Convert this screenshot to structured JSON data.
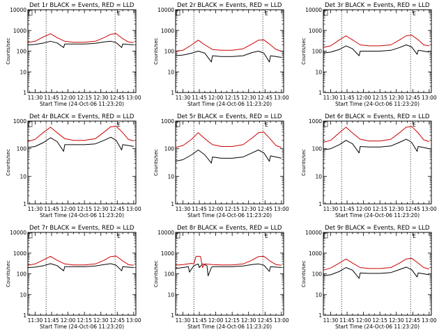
{
  "chart_data": [
    {
      "type": "line",
      "title": "Det 1r BLACK = Events, RED = LLD",
      "xlabel": "Start Time (24-Oct-06 11:23:20)",
      "ylabel": "Counts/sec",
      "x_ticks": [
        "11:30",
        "11:45",
        "12:00",
        "12:15",
        "12:30",
        "12:45",
        "13:00"
      ],
      "y_ticks": [
        "1",
        "10",
        "100",
        "1000",
        "10000"
      ],
      "ylim": [
        1,
        10000
      ],
      "y_scale": "log",
      "markers": [
        "11:40",
        "12:43"
      ],
      "flag": "E",
      "series": [
        {
          "color": "#000000",
          "x": [
            "11:23",
            "11:30",
            "11:38",
            "11:44",
            "11:50",
            "11:56",
            "11:57",
            "12:05",
            "12:15",
            "12:25",
            "12:33",
            "12:39",
            "12:44",
            "12:49",
            "12:50",
            "12:55",
            "13:00"
          ],
          "values": [
            200,
            210,
            250,
            300,
            250,
            150,
            220,
            220,
            220,
            240,
            280,
            300,
            260,
            150,
            220,
            210,
            200
          ]
        },
        {
          "color": "#cc0000",
          "x": [
            "11:23",
            "11:30",
            "11:38",
            "11:44",
            "11:50",
            "11:57",
            "12:05",
            "12:15",
            "12:25",
            "12:33",
            "12:39",
            "12:44",
            "12:50",
            "12:55",
            "13:00"
          ],
          "values": [
            260,
            300,
            500,
            700,
            450,
            300,
            270,
            270,
            300,
            450,
            650,
            700,
            400,
            280,
            260
          ]
        }
      ]
    },
    {
      "type": "line",
      "title": "Det 2r BLACK = Events, RED = LLD",
      "xlabel": "Start Time (24-Oct-06 11:23:20)",
      "ylabel": "Counts/sec",
      "x_ticks": [
        "11:30",
        "11:45",
        "12:00",
        "12:15",
        "12:30",
        "12:45",
        "13:00"
      ],
      "y_ticks": [
        "1",
        "10",
        "100",
        "1000",
        "10000"
      ],
      "ylim": [
        1,
        10000
      ],
      "y_scale": "log",
      "markers": [
        "11:40",
        "12:43"
      ],
      "flag": "E",
      "series": [
        {
          "color": "#000000",
          "x": [
            "11:23",
            "11:30",
            "11:38",
            "11:44",
            "11:50",
            "11:56",
            "11:57",
            "12:05",
            "12:15",
            "12:25",
            "12:33",
            "12:39",
            "12:44",
            "12:49",
            "12:50",
            "12:55",
            "13:00"
          ],
          "values": [
            60,
            65,
            80,
            100,
            80,
            30,
            60,
            55,
            55,
            60,
            85,
            100,
            80,
            30,
            60,
            55,
            50
          ]
        },
        {
          "color": "#cc0000",
          "x": [
            "11:23",
            "11:30",
            "11:38",
            "11:44",
            "11:50",
            "11:57",
            "12:05",
            "12:15",
            "12:25",
            "12:33",
            "12:39",
            "12:44",
            "12:50",
            "12:55",
            "13:00"
          ],
          "values": [
            100,
            110,
            200,
            340,
            200,
            120,
            110,
            110,
            130,
            220,
            340,
            350,
            200,
            120,
            100
          ]
        }
      ]
    },
    {
      "type": "line",
      "title": "Det 3r BLACK = Events, RED = LLD",
      "xlabel": "Start Time (24-Oct-06 11:23:20)",
      "ylabel": "Counts/sec",
      "x_ticks": [
        "11:30",
        "11:45",
        "12:00",
        "12:15",
        "12:30",
        "12:45",
        "13:00"
      ],
      "y_ticks": [
        "1",
        "10",
        "100",
        "1000",
        "10000"
      ],
      "ylim": [
        1,
        10000
      ],
      "y_scale": "log",
      "markers": [
        "11:40",
        "12:43"
      ],
      "flag": "E",
      "series": [
        {
          "color": "#000000",
          "x": [
            "11:23",
            "11:30",
            "11:38",
            "11:44",
            "11:50",
            "11:56",
            "11:57",
            "12:05",
            "12:15",
            "12:25",
            "12:33",
            "12:39",
            "12:44",
            "12:49",
            "12:50",
            "12:55",
            "13:00"
          ],
          "values": [
            80,
            90,
            120,
            180,
            130,
            60,
            100,
            100,
            100,
            110,
            150,
            200,
            160,
            70,
            110,
            100,
            90
          ]
        },
        {
          "color": "#cc0000",
          "x": [
            "11:23",
            "11:30",
            "11:38",
            "11:44",
            "11:50",
            "11:57",
            "12:05",
            "12:15",
            "12:25",
            "12:33",
            "12:39",
            "12:44",
            "12:50",
            "12:55",
            "13:00"
          ],
          "values": [
            150,
            180,
            350,
            550,
            350,
            200,
            180,
            180,
            200,
            350,
            550,
            600,
            350,
            200,
            180
          ]
        }
      ]
    },
    {
      "type": "line",
      "title": "Det 4r BLACK = Events, RED = LLD",
      "xlabel": "Start Time (24-Oct-06 11:23:20)",
      "ylabel": "Counts/sec",
      "x_ticks": [
        "11:30",
        "11:45",
        "12:00",
        "12:15",
        "12:30",
        "12:45",
        "13:00"
      ],
      "y_ticks": [
        "1",
        "10",
        "100",
        "1000"
      ],
      "ylim": [
        1,
        1000
      ],
      "y_scale": "log",
      "markers": [
        "11:40",
        "12:43"
      ],
      "flag": "E",
      "series": [
        {
          "color": "#000000",
          "x": [
            "11:23",
            "11:30",
            "11:38",
            "11:44",
            "11:50",
            "11:56",
            "11:57",
            "12:05",
            "12:15",
            "12:25",
            "12:33",
            "12:39",
            "12:44",
            "12:49",
            "12:50",
            "12:55",
            "13:00"
          ],
          "values": [
            110,
            120,
            170,
            250,
            180,
            80,
            140,
            140,
            140,
            150,
            200,
            260,
            200,
            90,
            140,
            130,
            120
          ]
        },
        {
          "color": "#cc0000",
          "x": [
            "11:23",
            "11:30",
            "11:38",
            "11:44",
            "11:50",
            "11:57",
            "12:05",
            "12:15",
            "12:25",
            "12:33",
            "12:39",
            "12:44",
            "12:50",
            "12:55",
            "13:00"
          ],
          "values": [
            180,
            220,
            400,
            600,
            380,
            230,
            200,
            200,
            230,
            400,
            620,
            650,
            380,
            220,
            190
          ]
        }
      ]
    },
    {
      "type": "line",
      "title": "Det 5r BLACK = Events, RED = LLD",
      "xlabel": "Start Time (24-Oct-06 11:23:20)",
      "ylabel": "Counts/sec",
      "x_ticks": [
        "11:30",
        "11:45",
        "12:00",
        "12:15",
        "12:30",
        "12:45",
        "13:00"
      ],
      "y_ticks": [
        "1",
        "10",
        "100",
        "1000"
      ],
      "ylim": [
        1,
        1000
      ],
      "y_scale": "log",
      "markers": [
        "11:40",
        "12:43"
      ],
      "flag": "E",
      "series": [
        {
          "color": "#000000",
          "x": [
            "11:23",
            "11:30",
            "11:38",
            "11:44",
            "11:50",
            "11:56",
            "11:57",
            "12:05",
            "12:15",
            "12:25",
            "12:33",
            "12:39",
            "12:44",
            "12:49",
            "12:50",
            "12:55",
            "13:00"
          ],
          "values": [
            35,
            40,
            60,
            90,
            60,
            30,
            50,
            45,
            45,
            50,
            70,
            90,
            70,
            35,
            55,
            50,
            45
          ]
        },
        {
          "color": "#cc0000",
          "x": [
            "11:23",
            "11:30",
            "11:38",
            "11:44",
            "11:50",
            "11:57",
            "12:05",
            "12:15",
            "12:25",
            "12:33",
            "12:39",
            "12:44",
            "12:50",
            "12:55",
            "13:00"
          ],
          "values": [
            110,
            130,
            220,
            380,
            230,
            140,
            120,
            120,
            140,
            240,
            380,
            400,
            220,
            130,
            110
          ]
        }
      ]
    },
    {
      "type": "line",
      "title": "Det 6r BLACK = Events, RED = LLD",
      "xlabel": "Start Time (24-Oct-06 11:23:20)",
      "ylabel": "Counts/sec",
      "x_ticks": [
        "11:30",
        "11:45",
        "12:00",
        "12:15",
        "12:30",
        "12:45",
        "13:00"
      ],
      "y_ticks": [
        "1",
        "10",
        "100",
        "1000"
      ],
      "ylim": [
        1,
        1000
      ],
      "y_scale": "log",
      "markers": [
        "11:40",
        "12:43"
      ],
      "flag": "E",
      "series": [
        {
          "color": "#000000",
          "x": [
            "11:23",
            "11:30",
            "11:38",
            "11:44",
            "11:50",
            "11:56",
            "11:57",
            "12:05",
            "12:15",
            "12:25",
            "12:33",
            "12:39",
            "12:44",
            "12:49",
            "12:50",
            "12:55",
            "13:00"
          ],
          "values": [
            90,
            100,
            140,
            200,
            150,
            70,
            120,
            115,
            115,
            125,
            170,
            220,
            170,
            80,
            120,
            110,
            100
          ]
        },
        {
          "color": "#cc0000",
          "x": [
            "11:23",
            "11:30",
            "11:38",
            "11:44",
            "11:50",
            "11:57",
            "12:05",
            "12:15",
            "12:25",
            "12:33",
            "12:39",
            "12:44",
            "12:50",
            "12:55",
            "13:00"
          ],
          "values": [
            170,
            200,
            380,
            600,
            370,
            220,
            190,
            190,
            220,
            380,
            600,
            640,
            370,
            210,
            180
          ]
        }
      ]
    },
    {
      "type": "line",
      "title": "Det 7r BLACK = Events, RED = LLD",
      "xlabel": "Start Time (24-Oct-06 11:23:20)",
      "ylabel": "Counts/sec",
      "x_ticks": [
        "11:30",
        "11:45",
        "12:00",
        "12:15",
        "12:30",
        "12:45",
        "13:00"
      ],
      "y_ticks": [
        "1",
        "10",
        "100",
        "1000",
        "10000"
      ],
      "ylim": [
        1,
        10000
      ],
      "y_scale": "log",
      "markers": [
        "11:40",
        "12:43"
      ],
      "flag": "E",
      "series": [
        {
          "color": "#000000",
          "x": [
            "11:23",
            "11:30",
            "11:38",
            "11:44",
            "11:50",
            "11:56",
            "11:57",
            "12:05",
            "12:15",
            "12:25",
            "12:33",
            "12:39",
            "12:44",
            "12:49",
            "12:50",
            "12:55",
            "13:00"
          ],
          "values": [
            200,
            210,
            250,
            310,
            250,
            140,
            220,
            220,
            220,
            240,
            280,
            310,
            260,
            140,
            220,
            210,
            200
          ]
        },
        {
          "color": "#cc0000",
          "x": [
            "11:23",
            "11:30",
            "11:38",
            "11:44",
            "11:50",
            "11:57",
            "12:05",
            "12:15",
            "12:25",
            "12:33",
            "12:39",
            "12:44",
            "12:50",
            "12:55",
            "13:00"
          ],
          "values": [
            260,
            300,
            480,
            700,
            450,
            300,
            270,
            270,
            300,
            450,
            680,
            720,
            420,
            280,
            260
          ]
        }
      ]
    },
    {
      "type": "line",
      "title": "Det 8r BLACK = Events, RED = LLD",
      "xlabel": "Start Time (24-Oct-06 11:23:20)",
      "ylabel": "Counts/sec",
      "x_ticks": [
        "11:30",
        "11:45",
        "12:00",
        "12:15",
        "12:30",
        "12:45",
        "13:00"
      ],
      "y_ticks": [
        "1",
        "10",
        "100",
        "1000",
        "10000"
      ],
      "ylim": [
        1,
        10000
      ],
      "y_scale": "log",
      "markers": [
        "11:40",
        "12:43"
      ],
      "flag": "E",
      "series": [
        {
          "color": "#000000",
          "x": [
            "11:23",
            "11:30",
            "11:35",
            "11:36",
            "11:40",
            "11:44",
            "11:45",
            "11:48",
            "11:52",
            "11:53",
            "11:56",
            "11:57",
            "12:05",
            "12:15",
            "12:25",
            "12:33",
            "12:39",
            "12:44",
            "12:49",
            "12:50",
            "12:55",
            "13:00"
          ],
          "values": [
            180,
            200,
            220,
            120,
            250,
            300,
            200,
            300,
            250,
            80,
            200,
            220,
            220,
            220,
            240,
            280,
            300,
            260,
            130,
            220,
            210,
            200
          ]
        },
        {
          "color": "#cc0000",
          "x": [
            "11:23",
            "11:30",
            "11:38",
            "11:40",
            "11:42",
            "11:46",
            "11:48",
            "11:50",
            "11:57",
            "12:05",
            "12:15",
            "12:25",
            "12:33",
            "12:39",
            "12:44",
            "12:50",
            "12:55",
            "13:00"
          ],
          "values": [
            260,
            280,
            320,
            300,
            700,
            700,
            200,
            300,
            280,
            270,
            270,
            300,
            450,
            680,
            700,
            400,
            280,
            260
          ]
        }
      ]
    },
    {
      "type": "line",
      "title": "Det 9r BLACK = Events, RED = LLD",
      "xlabel": "Start Time (24-Oct-06 11:23:20)",
      "ylabel": "Counts/sec",
      "x_ticks": [
        "11:30",
        "11:45",
        "12:00",
        "12:15",
        "12:30",
        "12:45",
        "13:00"
      ],
      "y_ticks": [
        "1",
        "10",
        "100",
        "1000",
        "10000"
      ],
      "ylim": [
        1,
        10000
      ],
      "y_scale": "log",
      "markers": [
        "11:40",
        "12:43"
      ],
      "flag": "E",
      "series": [
        {
          "color": "#000000",
          "x": [
            "11:23",
            "11:30",
            "11:38",
            "11:44",
            "11:50",
            "11:56",
            "11:57",
            "12:05",
            "12:15",
            "12:25",
            "12:33",
            "12:39",
            "12:44",
            "12:49",
            "12:50",
            "12:55",
            "13:00"
          ],
          "values": [
            80,
            90,
            130,
            200,
            150,
            60,
            110,
            105,
            105,
            115,
            160,
            210,
            160,
            70,
            110,
            100,
            90
          ]
        },
        {
          "color": "#cc0000",
          "x": [
            "11:23",
            "11:30",
            "11:38",
            "11:44",
            "11:50",
            "11:57",
            "12:05",
            "12:15",
            "12:25",
            "12:33",
            "12:39",
            "12:44",
            "12:50",
            "12:55",
            "13:00"
          ],
          "values": [
            150,
            190,
            330,
            520,
            330,
            200,
            180,
            180,
            200,
            330,
            520,
            560,
            330,
            200,
            170
          ]
        }
      ]
    }
  ]
}
